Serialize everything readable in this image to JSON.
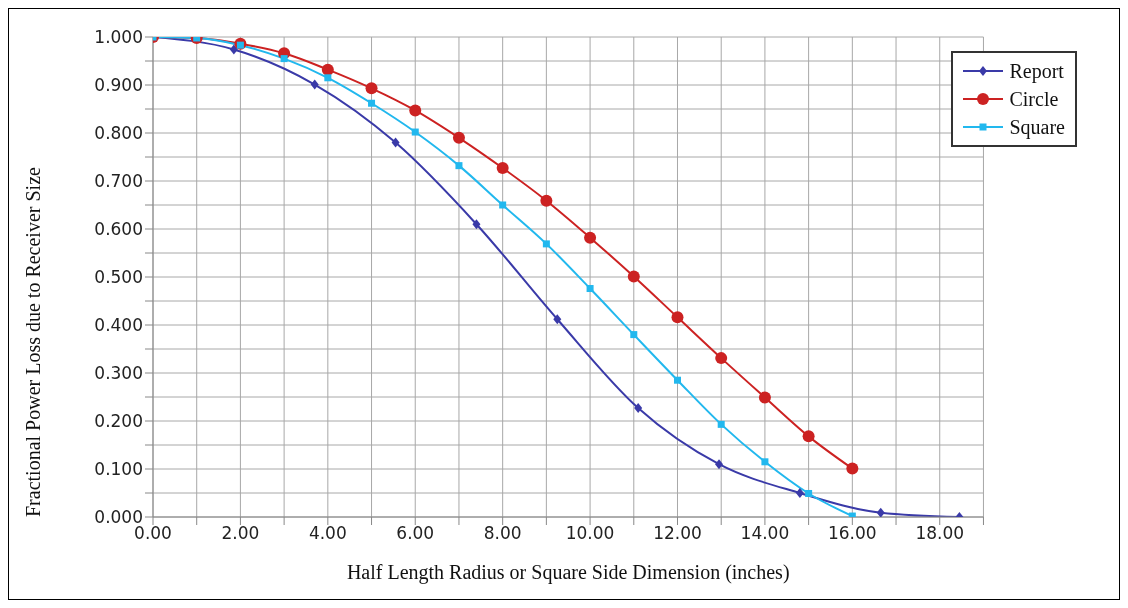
{
  "chart_data": {
    "type": "line",
    "xlabel": "Half Length Radius or Square Side Dimension (inches)",
    "ylabel": "Fractional Power Loss due to Receiver Size",
    "xlim": [
      0,
      19
    ],
    "xticks": [
      {
        "value": 0,
        "label": "0.00"
      },
      {
        "value": 1,
        "label": null
      },
      {
        "value": 2,
        "label": "2.00"
      },
      {
        "value": 3,
        "label": null
      },
      {
        "value": 4,
        "label": "4.00"
      },
      {
        "value": 5,
        "label": null
      },
      {
        "value": 6,
        "label": "6.00"
      },
      {
        "value": 7,
        "label": null
      },
      {
        "value": 8,
        "label": "8.00"
      },
      {
        "value": 9,
        "label": null
      },
      {
        "value": 10,
        "label": "10.00"
      },
      {
        "value": 11,
        "label": null
      },
      {
        "value": 12,
        "label": "12.00"
      },
      {
        "value": 13,
        "label": null
      },
      {
        "value": 14,
        "label": "14.00"
      },
      {
        "value": 15,
        "label": null
      },
      {
        "value": 16,
        "label": "16.00"
      },
      {
        "value": 17,
        "label": null
      },
      {
        "value": 18,
        "label": "18.00"
      },
      {
        "value": 19,
        "label": null
      }
    ],
    "ylim": [
      0,
      1
    ],
    "yticks": [
      {
        "value": 0,
        "label": "0.000"
      },
      {
        "value": 0.05,
        "label": null
      },
      {
        "value": 0.1,
        "label": "0.100"
      },
      {
        "value": 0.15,
        "label": null
      },
      {
        "value": 0.2,
        "label": "0.200"
      },
      {
        "value": 0.25,
        "label": null
      },
      {
        "value": 0.3,
        "label": "0.300"
      },
      {
        "value": 0.35,
        "label": null
      },
      {
        "value": 0.4,
        "label": "0.400"
      },
      {
        "value": 0.45,
        "label": null
      },
      {
        "value": 0.5,
        "label": "0.500"
      },
      {
        "value": 0.55,
        "label": null
      },
      {
        "value": 0.6,
        "label": "0.600"
      },
      {
        "value": 0.65,
        "label": null
      },
      {
        "value": 0.7,
        "label": "0.700"
      },
      {
        "value": 0.75,
        "label": null
      },
      {
        "value": 0.8,
        "label": "0.800"
      },
      {
        "value": 0.85,
        "label": null
      },
      {
        "value": 0.9,
        "label": "0.900"
      },
      {
        "value": 0.95,
        "label": null
      },
      {
        "value": 1,
        "label": "1.000"
      }
    ],
    "grid": true,
    "legend": "top right",
    "line_style": "solid",
    "series": [
      {
        "name": "Report",
        "color": "#3a3aa8",
        "marker": "diamond",
        "x": [
          0,
          1.85,
          3.7,
          5.55,
          7.4,
          9.25,
          11.1,
          12.95,
          14.8,
          16.65,
          18.45
        ],
        "values": [
          1.0,
          0.974,
          0.901,
          0.78,
          0.61,
          0.412,
          0.227,
          0.11,
          0.05,
          0.009,
          0.0
        ]
      },
      {
        "name": "Circle",
        "color": "#cc2222",
        "marker": "circle",
        "x": [
          0,
          1,
          2,
          3,
          4,
          5,
          6,
          7,
          8,
          9,
          10,
          11,
          12,
          13,
          14,
          15,
          16
        ],
        "values": [
          1.0,
          0.998,
          0.986,
          0.966,
          0.932,
          0.893,
          0.847,
          0.79,
          0.727,
          0.659,
          0.582,
          0.501,
          0.416,
          0.331,
          0.249,
          0.168,
          0.101
        ]
      },
      {
        "name": "Square",
        "color": "#22b8ee",
        "marker": "square",
        "x": [
          0,
          1,
          2,
          3,
          4,
          5,
          6,
          7,
          8,
          9,
          10,
          11,
          12,
          13,
          14,
          15,
          16
        ],
        "values": [
          1.0,
          0.998,
          0.983,
          0.955,
          0.915,
          0.862,
          0.802,
          0.732,
          0.65,
          0.569,
          0.476,
          0.38,
          0.285,
          0.193,
          0.115,
          0.049,
          0.002
        ]
      }
    ]
  }
}
